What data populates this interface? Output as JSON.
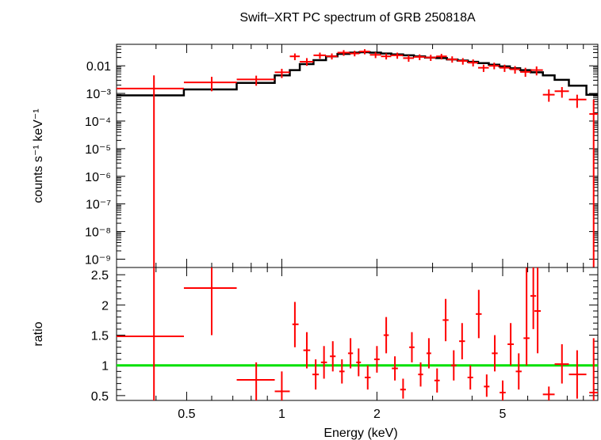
{
  "chart_data": [
    {
      "type": "scatter",
      "panel": "spectrum",
      "title": "Swift–XRT PC spectrum of GRB 250818A",
      "ylabel": "counts s⁻¹ keV⁻¹",
      "xscale": "log",
      "yscale": "log",
      "xlim": [
        0.3,
        10
      ],
      "ylim": [
        5e-10,
        0.06
      ],
      "x_ticks": [
        0.5,
        1,
        2,
        5
      ],
      "y_ticks": [
        {
          "label": "0.01",
          "value": 0.01
        },
        {
          "label": "10⁻³",
          "value": 0.001
        },
        {
          "label": "10⁻⁴",
          "value": 0.0001
        },
        {
          "label": "10⁻⁵",
          "value": 1e-05
        },
        {
          "label": "10⁻⁶",
          "value": 1e-06
        },
        {
          "label": "10⁻⁷",
          "value": 1e-07
        },
        {
          "label": "10⁻⁸",
          "value": 1e-08
        },
        {
          "label": "10⁻⁹",
          "value": 1e-09
        }
      ],
      "series": [
        {
          "kind": "data",
          "color": "#ff0000",
          "points": [
            {
              "x": 0.394,
              "xlo": 0.3,
              "xhi": 0.49,
              "y": 0.0015,
              "ylo": 5e-10,
              "yhi": 0.0045
            },
            {
              "x": 0.6,
              "xlo": 0.49,
              "xhi": 0.72,
              "y": 0.0025,
              "ylo": 0.0012,
              "yhi": 0.004
            },
            {
              "x": 0.83,
              "xlo": 0.72,
              "xhi": 0.95,
              "y": 0.0032,
              "ylo": 0.0019,
              "yhi": 0.0044
            },
            {
              "x": 1.0,
              "xlo": 0.95,
              "xhi": 1.06,
              "y": 0.0058,
              "ylo": 0.0036,
              "yhi": 0.0078
            },
            {
              "x": 1.1,
              "xlo": 1.06,
              "xhi": 1.14,
              "y": 0.022,
              "ylo": 0.016,
              "yhi": 0.028
            },
            {
              "x": 1.2,
              "xlo": 1.14,
              "xhi": 1.26,
              "y": 0.014,
              "ylo": 0.01,
              "yhi": 0.019
            },
            {
              "x": 1.32,
              "xlo": 1.26,
              "xhi": 1.38,
              "y": 0.024,
              "ylo": 0.018,
              "yhi": 0.03
            },
            {
              "x": 1.44,
              "xlo": 1.38,
              "xhi": 1.5,
              "y": 0.022,
              "ylo": 0.017,
              "yhi": 0.028
            },
            {
              "x": 1.57,
              "xlo": 1.5,
              "xhi": 1.64,
              "y": 0.03,
              "ylo": 0.023,
              "yhi": 0.037
            },
            {
              "x": 1.7,
              "xlo": 1.64,
              "xhi": 1.76,
              "y": 0.028,
              "ylo": 0.022,
              "yhi": 0.035
            },
            {
              "x": 1.83,
              "xlo": 1.76,
              "xhi": 1.9,
              "y": 0.033,
              "ylo": 0.026,
              "yhi": 0.04
            },
            {
              "x": 1.98,
              "xlo": 1.9,
              "xhi": 2.06,
              "y": 0.025,
              "ylo": 0.019,
              "yhi": 0.031
            },
            {
              "x": 2.14,
              "xlo": 2.06,
              "xhi": 2.22,
              "y": 0.022,
              "ylo": 0.017,
              "yhi": 0.028
            },
            {
              "x": 2.32,
              "xlo": 2.22,
              "xhi": 2.42,
              "y": 0.024,
              "ylo": 0.018,
              "yhi": 0.03
            },
            {
              "x": 2.52,
              "xlo": 2.42,
              "xhi": 2.62,
              "y": 0.019,
              "ylo": 0.014,
              "yhi": 0.024
            },
            {
              "x": 2.73,
              "xlo": 2.62,
              "xhi": 2.84,
              "y": 0.021,
              "ylo": 0.016,
              "yhi": 0.026
            },
            {
              "x": 2.96,
              "xlo": 2.84,
              "xhi": 3.08,
              "y": 0.02,
              "ylo": 0.015,
              "yhi": 0.025
            },
            {
              "x": 3.2,
              "xlo": 3.08,
              "xhi": 3.33,
              "y": 0.022,
              "ylo": 0.017,
              "yhi": 0.027
            },
            {
              "x": 3.46,
              "xlo": 3.33,
              "xhi": 3.6,
              "y": 0.017,
              "ylo": 0.013,
              "yhi": 0.022
            },
            {
              "x": 3.74,
              "xlo": 3.6,
              "xhi": 3.88,
              "y": 0.015,
              "ylo": 0.011,
              "yhi": 0.019
            },
            {
              "x": 4.03,
              "xlo": 3.88,
              "xhi": 4.18,
              "y": 0.013,
              "ylo": 0.0095,
              "yhi": 0.017
            },
            {
              "x": 4.35,
              "xlo": 4.18,
              "xhi": 4.52,
              "y": 0.0085,
              "ylo": 0.006,
              "yhi": 0.011
            },
            {
              "x": 4.7,
              "xlo": 4.52,
              "xhi": 4.88,
              "y": 0.01,
              "ylo": 0.0075,
              "yhi": 0.013
            },
            {
              "x": 5.07,
              "xlo": 4.88,
              "xhi": 5.27,
              "y": 0.0085,
              "ylo": 0.006,
              "yhi": 0.011
            },
            {
              "x": 5.47,
              "xlo": 5.27,
              "xhi": 5.68,
              "y": 0.0075,
              "ylo": 0.0052,
              "yhi": 0.0098
            },
            {
              "x": 5.9,
              "xlo": 5.68,
              "xhi": 6.13,
              "y": 0.006,
              "ylo": 0.004,
              "yhi": 0.0085
            },
            {
              "x": 6.4,
              "xlo": 6.13,
              "xhi": 6.7,
              "y": 0.007,
              "ylo": 0.0045,
              "yhi": 0.0095
            },
            {
              "x": 7.0,
              "xlo": 6.7,
              "xhi": 7.3,
              "y": 0.0009,
              "ylo": 0.0005,
              "yhi": 0.0014
            },
            {
              "x": 7.7,
              "xlo": 7.3,
              "xhi": 8.1,
              "y": 0.0012,
              "ylo": 0.0007,
              "yhi": 0.0017
            },
            {
              "x": 8.6,
              "xlo": 8.1,
              "xhi": 9.2,
              "y": 0.0006,
              "ylo": 0.0003,
              "yhi": 0.0009
            },
            {
              "x": 9.7,
              "xlo": 9.4,
              "xhi": 10.0,
              "y": 0.00018,
              "ylo": 5e-10,
              "yhi": 0.0006
            }
          ]
        },
        {
          "kind": "model",
          "color": "#000000",
          "step_x": [
            0.3,
            0.49,
            0.72,
            0.95,
            1.06,
            1.14,
            1.26,
            1.38,
            1.5,
            1.64,
            1.76,
            1.9,
            2.06,
            2.22,
            2.42,
            2.62,
            2.84,
            3.08,
            3.33,
            3.6,
            3.88,
            4.18,
            4.52,
            4.88,
            5.27,
            5.68,
            6.13,
            6.7,
            7.3,
            8.1,
            9.2,
            10.0
          ],
          "step_y": [
            0.00085,
            0.0014,
            0.0024,
            0.0045,
            0.007,
            0.0115,
            0.016,
            0.022,
            0.027,
            0.03,
            0.031,
            0.03,
            0.028,
            0.026,
            0.024,
            0.022,
            0.02,
            0.019,
            0.017,
            0.0155,
            0.014,
            0.0125,
            0.011,
            0.0095,
            0.0082,
            0.007,
            0.0058,
            0.0045,
            0.0031,
            0.0019,
            0.0009
          ]
        }
      ]
    },
    {
      "type": "scatter",
      "panel": "ratio",
      "xlabel": "Energy (keV)",
      "ylabel": "ratio",
      "xscale": "log",
      "xlim": [
        0.3,
        10
      ],
      "ylim": [
        0.42,
        2.62
      ],
      "x_ticks": [
        0.5,
        1,
        2,
        5
      ],
      "x_tick_labels": [
        "0.5",
        "1",
        "2",
        "5"
      ],
      "y_ticks": [
        0.5,
        1,
        1.5,
        2,
        2.5
      ],
      "y_tick_labels": [
        "0.5",
        "1",
        "1.5",
        "2",
        "2.5"
      ],
      "reference_line": {
        "y": 1,
        "color": "#00e000"
      },
      "series": [
        {
          "kind": "data",
          "color": "#ff0000",
          "points": [
            {
              "x": 0.394,
              "xlo": 0.3,
              "xhi": 0.49,
              "y": 1.48,
              "ylo": 0.42,
              "yhi": 2.62
            },
            {
              "x": 0.6,
              "xlo": 0.49,
              "xhi": 0.72,
              "y": 2.28,
              "ylo": 1.5,
              "yhi": 2.62
            },
            {
              "x": 0.83,
              "xlo": 0.72,
              "xhi": 0.95,
              "y": 0.76,
              "ylo": 0.42,
              "yhi": 1.05
            },
            {
              "x": 1.0,
              "xlo": 0.95,
              "xhi": 1.06,
              "y": 0.57,
              "ylo": 0.42,
              "yhi": 0.9
            },
            {
              "x": 1.1,
              "xlo": 1.08,
              "xhi": 1.13,
              "y": 1.68,
              "ylo": 1.3,
              "yhi": 2.05
            },
            {
              "x": 1.2,
              "xlo": 1.17,
              "xhi": 1.23,
              "y": 1.25,
              "ylo": 0.95,
              "yhi": 1.55
            },
            {
              "x": 1.28,
              "xlo": 1.25,
              "xhi": 1.31,
              "y": 0.85,
              "ylo": 0.6,
              "yhi": 1.1
            },
            {
              "x": 1.36,
              "xlo": 1.33,
              "xhi": 1.39,
              "y": 1.05,
              "ylo": 0.78,
              "yhi": 1.32
            },
            {
              "x": 1.45,
              "xlo": 1.42,
              "xhi": 1.48,
              "y": 1.15,
              "ylo": 0.9,
              "yhi": 1.4
            },
            {
              "x": 1.55,
              "xlo": 1.52,
              "xhi": 1.58,
              "y": 0.9,
              "ylo": 0.7,
              "yhi": 1.1
            },
            {
              "x": 1.65,
              "xlo": 1.62,
              "xhi": 1.68,
              "y": 1.2,
              "ylo": 0.95,
              "yhi": 1.45
            },
            {
              "x": 1.75,
              "xlo": 1.72,
              "xhi": 1.78,
              "y": 1.05,
              "ylo": 0.82,
              "yhi": 1.28
            },
            {
              "x": 1.87,
              "xlo": 1.83,
              "xhi": 1.91,
              "y": 0.8,
              "ylo": 0.6,
              "yhi": 1.0
            },
            {
              "x": 2.0,
              "xlo": 1.96,
              "xhi": 2.04,
              "y": 1.1,
              "ylo": 0.88,
              "yhi": 1.32
            },
            {
              "x": 2.14,
              "xlo": 2.1,
              "xhi": 2.18,
              "y": 1.5,
              "ylo": 1.2,
              "yhi": 1.8
            },
            {
              "x": 2.28,
              "xlo": 2.23,
              "xhi": 2.33,
              "y": 0.95,
              "ylo": 0.75,
              "yhi": 1.15
            },
            {
              "x": 2.42,
              "xlo": 2.37,
              "xhi": 2.47,
              "y": 0.6,
              "ylo": 0.45,
              "yhi": 0.78
            },
            {
              "x": 2.58,
              "xlo": 2.53,
              "xhi": 2.63,
              "y": 1.3,
              "ylo": 1.05,
              "yhi": 1.55
            },
            {
              "x": 2.75,
              "xlo": 2.7,
              "xhi": 2.8,
              "y": 0.85,
              "ylo": 0.65,
              "yhi": 1.05
            },
            {
              "x": 2.92,
              "xlo": 2.87,
              "xhi": 2.97,
              "y": 1.2,
              "ylo": 0.95,
              "yhi": 1.45
            },
            {
              "x": 3.1,
              "xlo": 3.04,
              "xhi": 3.16,
              "y": 0.75,
              "ylo": 0.55,
              "yhi": 0.95
            },
            {
              "x": 3.3,
              "xlo": 3.23,
              "xhi": 3.37,
              "y": 1.75,
              "ylo": 1.4,
              "yhi": 2.1
            },
            {
              "x": 3.5,
              "xlo": 3.43,
              "xhi": 3.57,
              "y": 1.0,
              "ylo": 0.75,
              "yhi": 1.25
            },
            {
              "x": 3.72,
              "xlo": 3.64,
              "xhi": 3.8,
              "y": 1.4,
              "ylo": 1.1,
              "yhi": 1.7
            },
            {
              "x": 3.95,
              "xlo": 3.87,
              "xhi": 4.03,
              "y": 0.8,
              "ylo": 0.6,
              "yhi": 1.0
            },
            {
              "x": 4.2,
              "xlo": 4.11,
              "xhi": 4.29,
              "y": 1.85,
              "ylo": 1.45,
              "yhi": 2.25
            },
            {
              "x": 4.45,
              "xlo": 4.36,
              "xhi": 4.54,
              "y": 0.65,
              "ylo": 0.48,
              "yhi": 0.85
            },
            {
              "x": 4.72,
              "xlo": 4.62,
              "xhi": 4.82,
              "y": 1.2,
              "ylo": 0.9,
              "yhi": 1.5
            },
            {
              "x": 5.0,
              "xlo": 4.89,
              "xhi": 5.11,
              "y": 0.55,
              "ylo": 0.42,
              "yhi": 0.75
            },
            {
              "x": 5.3,
              "xlo": 5.18,
              "xhi": 5.42,
              "y": 1.35,
              "ylo": 1.0,
              "yhi": 1.7
            },
            {
              "x": 5.62,
              "xlo": 5.5,
              "xhi": 5.74,
              "y": 0.9,
              "ylo": 0.6,
              "yhi": 1.2
            },
            {
              "x": 5.95,
              "xlo": 5.82,
              "xhi": 6.08,
              "y": 1.45,
              "ylo": 1.0,
              "yhi": 2.62
            },
            {
              "x": 6.25,
              "xlo": 6.12,
              "xhi": 6.38,
              "y": 2.15,
              "ylo": 1.6,
              "yhi": 2.62
            },
            {
              "x": 6.45,
              "xlo": 6.3,
              "xhi": 6.6,
              "y": 1.9,
              "ylo": 1.2,
              "yhi": 2.62
            },
            {
              "x": 7.0,
              "xlo": 6.7,
              "xhi": 7.3,
              "y": 0.52,
              "ylo": 0.42,
              "yhi": 0.65
            },
            {
              "x": 7.7,
              "xlo": 7.3,
              "xhi": 8.1,
              "y": 1.02,
              "ylo": 0.7,
              "yhi": 1.35
            },
            {
              "x": 8.6,
              "xlo": 8.1,
              "xhi": 9.2,
              "y": 0.85,
              "ylo": 0.45,
              "yhi": 1.25
            },
            {
              "x": 9.7,
              "xlo": 9.4,
              "xhi": 10.0,
              "y": 0.55,
              "ylo": 0.42,
              "yhi": 1.45
            }
          ]
        }
      ]
    }
  ]
}
